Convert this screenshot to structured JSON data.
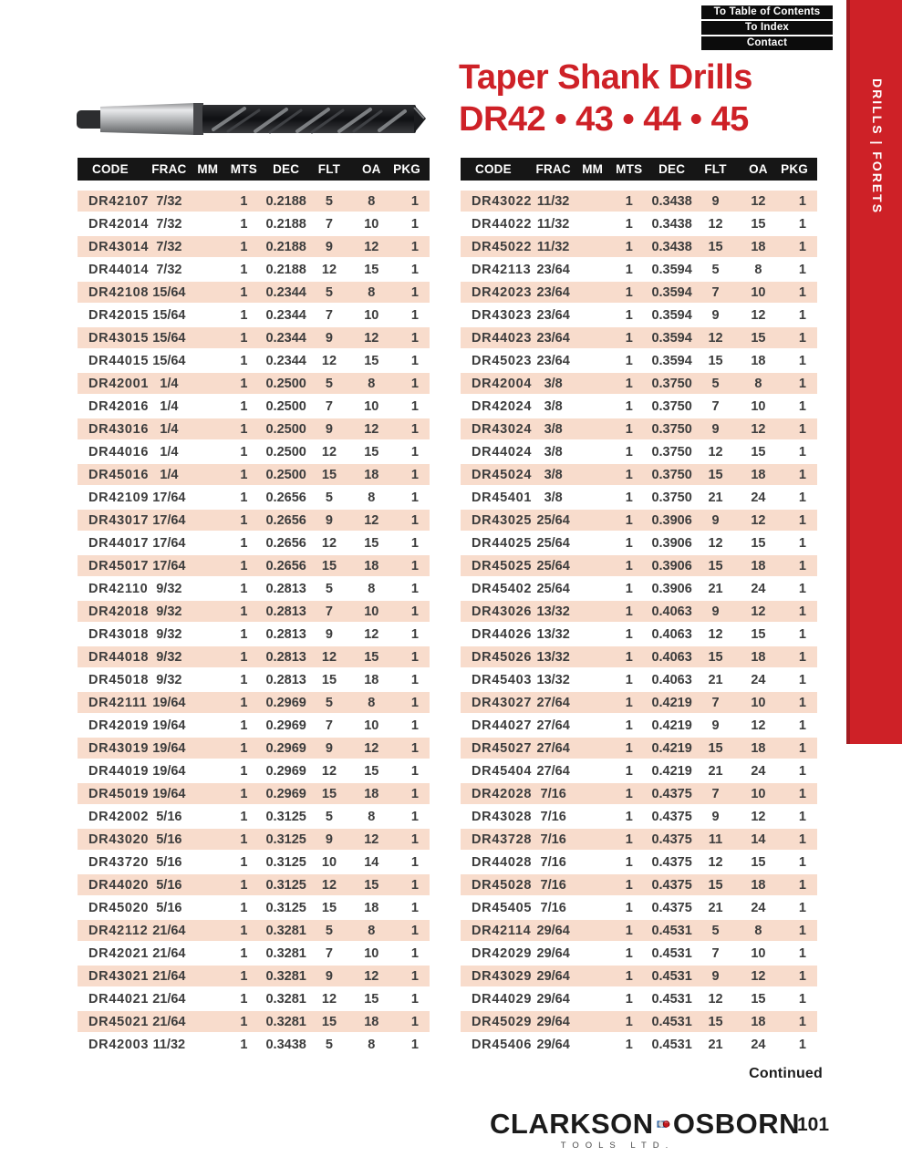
{
  "nav": {
    "buttons": [
      "To Table of Contents",
      "To Index",
      "Contact"
    ]
  },
  "sidebar": {
    "label": "DRILLS | FORETS"
  },
  "title": {
    "line1": "Taper Shank Drills",
    "line2": "DR42 • 43 • 44 • 45"
  },
  "table": {
    "headers": [
      "CODE",
      "FRAC",
      "MM",
      "MTS",
      "DEC",
      "FLT",
      "OA",
      "PKG"
    ],
    "left_rows": [
      [
        "DR42107",
        "7/32",
        "",
        "1",
        "0.2188",
        "5",
        "8",
        "1"
      ],
      [
        "DR42014",
        "7/32",
        "",
        "1",
        "0.2188",
        "7",
        "10",
        "1"
      ],
      [
        "DR43014",
        "7/32",
        "",
        "1",
        "0.2188",
        "9",
        "12",
        "1"
      ],
      [
        "DR44014",
        "7/32",
        "",
        "1",
        "0.2188",
        "12",
        "15",
        "1"
      ],
      [
        "DR42108",
        "15/64",
        "",
        "1",
        "0.2344",
        "5",
        "8",
        "1"
      ],
      [
        "DR42015",
        "15/64",
        "",
        "1",
        "0.2344",
        "7",
        "10",
        "1"
      ],
      [
        "DR43015",
        "15/64",
        "",
        "1",
        "0.2344",
        "9",
        "12",
        "1"
      ],
      [
        "DR44015",
        "15/64",
        "",
        "1",
        "0.2344",
        "12",
        "15",
        "1"
      ],
      [
        "DR42001",
        "1/4",
        "",
        "1",
        "0.2500",
        "5",
        "8",
        "1"
      ],
      [
        "DR42016",
        "1/4",
        "",
        "1",
        "0.2500",
        "7",
        "10",
        "1"
      ],
      [
        "DR43016",
        "1/4",
        "",
        "1",
        "0.2500",
        "9",
        "12",
        "1"
      ],
      [
        "DR44016",
        "1/4",
        "",
        "1",
        "0.2500",
        "12",
        "15",
        "1"
      ],
      [
        "DR45016",
        "1/4",
        "",
        "1",
        "0.2500",
        "15",
        "18",
        "1"
      ],
      [
        "DR42109",
        "17/64",
        "",
        "1",
        "0.2656",
        "5",
        "8",
        "1"
      ],
      [
        "DR43017",
        "17/64",
        "",
        "1",
        "0.2656",
        "9",
        "12",
        "1"
      ],
      [
        "DR44017",
        "17/64",
        "",
        "1",
        "0.2656",
        "12",
        "15",
        "1"
      ],
      [
        "DR45017",
        "17/64",
        "",
        "1",
        "0.2656",
        "15",
        "18",
        "1"
      ],
      [
        "DR42110",
        "9/32",
        "",
        "1",
        "0.2813",
        "5",
        "8",
        "1"
      ],
      [
        "DR42018",
        "9/32",
        "",
        "1",
        "0.2813",
        "7",
        "10",
        "1"
      ],
      [
        "DR43018",
        "9/32",
        "",
        "1",
        "0.2813",
        "9",
        "12",
        "1"
      ],
      [
        "DR44018",
        "9/32",
        "",
        "1",
        "0.2813",
        "12",
        "15",
        "1"
      ],
      [
        "DR45018",
        "9/32",
        "",
        "1",
        "0.2813",
        "15",
        "18",
        "1"
      ],
      [
        "DR42111",
        "19/64",
        "",
        "1",
        "0.2969",
        "5",
        "8",
        "1"
      ],
      [
        "DR42019",
        "19/64",
        "",
        "1",
        "0.2969",
        "7",
        "10",
        "1"
      ],
      [
        "DR43019",
        "19/64",
        "",
        "1",
        "0.2969",
        "9",
        "12",
        "1"
      ],
      [
        "DR44019",
        "19/64",
        "",
        "1",
        "0.2969",
        "12",
        "15",
        "1"
      ],
      [
        "DR45019",
        "19/64",
        "",
        "1",
        "0.2969",
        "15",
        "18",
        "1"
      ],
      [
        "DR42002",
        "5/16",
        "",
        "1",
        "0.3125",
        "5",
        "8",
        "1"
      ],
      [
        "DR43020",
        "5/16",
        "",
        "1",
        "0.3125",
        "9",
        "12",
        "1"
      ],
      [
        "DR43720",
        "5/16",
        "",
        "1",
        "0.3125",
        "10",
        "14",
        "1"
      ],
      [
        "DR44020",
        "5/16",
        "",
        "1",
        "0.3125",
        "12",
        "15",
        "1"
      ],
      [
        "DR45020",
        "5/16",
        "",
        "1",
        "0.3125",
        "15",
        "18",
        "1"
      ],
      [
        "DR42112",
        "21/64",
        "",
        "1",
        "0.3281",
        "5",
        "8",
        "1"
      ],
      [
        "DR42021",
        "21/64",
        "",
        "1",
        "0.3281",
        "7",
        "10",
        "1"
      ],
      [
        "DR43021",
        "21/64",
        "",
        "1",
        "0.3281",
        "9",
        "12",
        "1"
      ],
      [
        "DR44021",
        "21/64",
        "",
        "1",
        "0.3281",
        "12",
        "15",
        "1"
      ],
      [
        "DR45021",
        "21/64",
        "",
        "1",
        "0.3281",
        "15",
        "18",
        "1"
      ],
      [
        "DR42003",
        "11/32",
        "",
        "1",
        "0.3438",
        "5",
        "8",
        "1"
      ]
    ],
    "right_rows": [
      [
        "DR43022",
        "11/32",
        "",
        "1",
        "0.3438",
        "9",
        "12",
        "1"
      ],
      [
        "DR44022",
        "11/32",
        "",
        "1",
        "0.3438",
        "12",
        "15",
        "1"
      ],
      [
        "DR45022",
        "11/32",
        "",
        "1",
        "0.3438",
        "15",
        "18",
        "1"
      ],
      [
        "DR42113",
        "23/64",
        "",
        "1",
        "0.3594",
        "5",
        "8",
        "1"
      ],
      [
        "DR42023",
        "23/64",
        "",
        "1",
        "0.3594",
        "7",
        "10",
        "1"
      ],
      [
        "DR43023",
        "23/64",
        "",
        "1",
        "0.3594",
        "9",
        "12",
        "1"
      ],
      [
        "DR44023",
        "23/64",
        "",
        "1",
        "0.3594",
        "12",
        "15",
        "1"
      ],
      [
        "DR45023",
        "23/64",
        "",
        "1",
        "0.3594",
        "15",
        "18",
        "1"
      ],
      [
        "DR42004",
        "3/8",
        "",
        "1",
        "0.3750",
        "5",
        "8",
        "1"
      ],
      [
        "DR42024",
        "3/8",
        "",
        "1",
        "0.3750",
        "7",
        "10",
        "1"
      ],
      [
        "DR43024",
        "3/8",
        "",
        "1",
        "0.3750",
        "9",
        "12",
        "1"
      ],
      [
        "DR44024",
        "3/8",
        "",
        "1",
        "0.3750",
        "12",
        "15",
        "1"
      ],
      [
        "DR45024",
        "3/8",
        "",
        "1",
        "0.3750",
        "15",
        "18",
        "1"
      ],
      [
        "DR45401",
        "3/8",
        "",
        "1",
        "0.3750",
        "21",
        "24",
        "1"
      ],
      [
        "DR43025",
        "25/64",
        "",
        "1",
        "0.3906",
        "9",
        "12",
        "1"
      ],
      [
        "DR44025",
        "25/64",
        "",
        "1",
        "0.3906",
        "12",
        "15",
        "1"
      ],
      [
        "DR45025",
        "25/64",
        "",
        "1",
        "0.3906",
        "15",
        "18",
        "1"
      ],
      [
        "DR45402",
        "25/64",
        "",
        "1",
        "0.3906",
        "21",
        "24",
        "1"
      ],
      [
        "DR43026",
        "13/32",
        "",
        "1",
        "0.4063",
        "9",
        "12",
        "1"
      ],
      [
        "DR44026",
        "13/32",
        "",
        "1",
        "0.4063",
        "12",
        "15",
        "1"
      ],
      [
        "DR45026",
        "13/32",
        "",
        "1",
        "0.4063",
        "15",
        "18",
        "1"
      ],
      [
        "DR45403",
        "13/32",
        "",
        "1",
        "0.4063",
        "21",
        "24",
        "1"
      ],
      [
        "DR43027",
        "27/64",
        "",
        "1",
        "0.4219",
        "7",
        "10",
        "1"
      ],
      [
        "DR44027",
        "27/64",
        "",
        "1",
        "0.4219",
        "9",
        "12",
        "1"
      ],
      [
        "DR45027",
        "27/64",
        "",
        "1",
        "0.4219",
        "15",
        "18",
        "1"
      ],
      [
        "DR45404",
        "27/64",
        "",
        "1",
        "0.4219",
        "21",
        "24",
        "1"
      ],
      [
        "DR42028",
        "7/16",
        "",
        "1",
        "0.4375",
        "7",
        "10",
        "1"
      ],
      [
        "DR43028",
        "7/16",
        "",
        "1",
        "0.4375",
        "9",
        "12",
        "1"
      ],
      [
        "DR43728",
        "7/16",
        "",
        "1",
        "0.4375",
        "11",
        "14",
        "1"
      ],
      [
        "DR44028",
        "7/16",
        "",
        "1",
        "0.4375",
        "12",
        "15",
        "1"
      ],
      [
        "DR45028",
        "7/16",
        "",
        "1",
        "0.4375",
        "15",
        "18",
        "1"
      ],
      [
        "DR45405",
        "7/16",
        "",
        "1",
        "0.4375",
        "21",
        "24",
        "1"
      ],
      [
        "DR42114",
        "29/64",
        "",
        "1",
        "0.4531",
        "5",
        "8",
        "1"
      ],
      [
        "DR42029",
        "29/64",
        "",
        "1",
        "0.4531",
        "7",
        "10",
        "1"
      ],
      [
        "DR43029",
        "29/64",
        "",
        "1",
        "0.4531",
        "9",
        "12",
        "1"
      ],
      [
        "DR44029",
        "29/64",
        "",
        "1",
        "0.4531",
        "12",
        "15",
        "1"
      ],
      [
        "DR45029",
        "29/64",
        "",
        "1",
        "0.4531",
        "15",
        "18",
        "1"
      ],
      [
        "DR45406",
        "29/64",
        "",
        "1",
        "0.4531",
        "21",
        "24",
        "1"
      ]
    ]
  },
  "footer": {
    "continued": "Continued",
    "brand_left": "CLARKSON",
    "brand_right": "OSBORN",
    "brand_sub": "TOOLS LTD.",
    "page_number": "101"
  },
  "colors": {
    "accent_red": "#ce2127",
    "accent_red_dark": "#a31c22",
    "row_pink": "#f8dccc",
    "header_black": "#161616",
    "cell_text": "#3d3d3d"
  }
}
